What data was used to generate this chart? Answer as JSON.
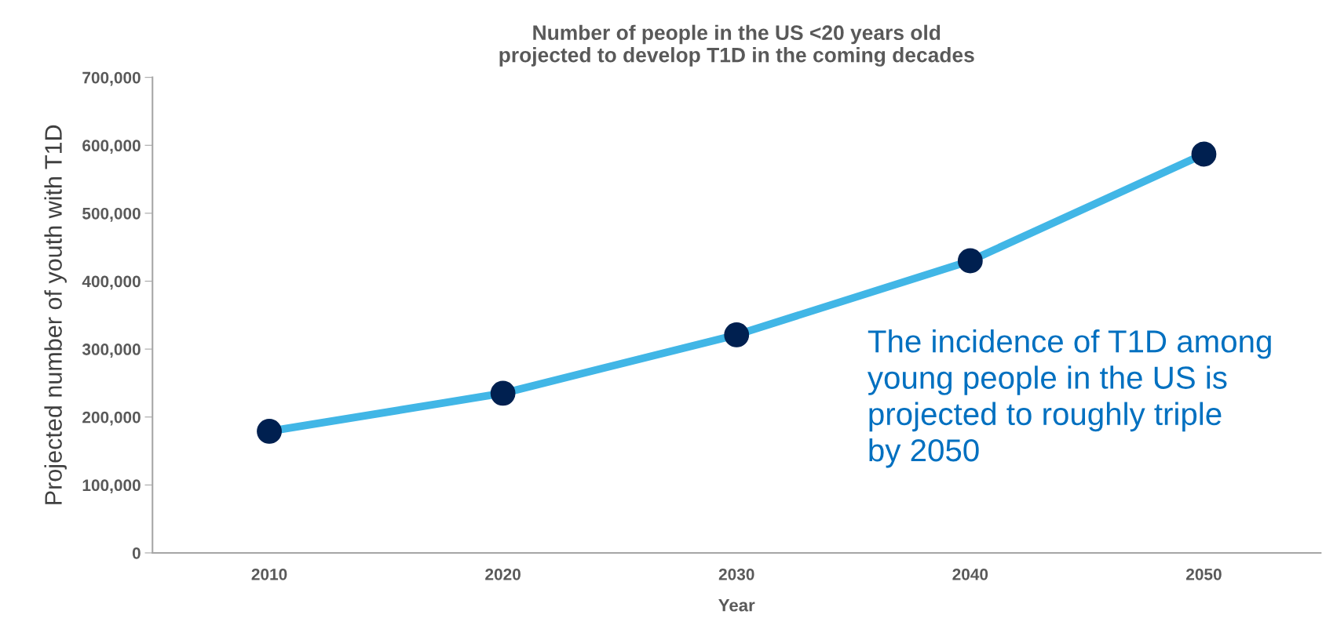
{
  "chart_data": {
    "type": "line",
    "title": "Number of people in the US <20 years old\nprojected to develop T1D in the coming decades",
    "xlabel": "Year",
    "ylabel": "Projected number of youth with T1D",
    "categories": [
      "2010",
      "2020",
      "2030",
      "2040",
      "2050"
    ],
    "series": [
      {
        "color": "#41b6e6",
        "colors": [
          "#002050",
          "#002050",
          "#002050",
          "#002050",
          "#002050"
        ],
        "values": [
          179000,
          235000,
          321000,
          430000,
          587000
        ]
      }
    ],
    "ylim": [
      0,
      700000
    ],
    "yticks": [
      {
        "value": 0,
        "label": "0"
      },
      {
        "value": 100000,
        "label": "100,000"
      },
      {
        "value": 200000,
        "label": "200,000"
      },
      {
        "value": 300000,
        "label": "300,000"
      },
      {
        "value": 400000,
        "label": "400,000"
      },
      {
        "value": 500000,
        "label": "500,000"
      },
      {
        "value": 600000,
        "label": "600,000"
      },
      {
        "value": 700000,
        "label": "700,000"
      }
    ],
    "marker": "circle",
    "line_style": "solid",
    "grid": false,
    "legend": false,
    "annotations": [
      "The incidence of T1D among\nyoung people in the US is\nprojected to roughly triple\nby 2050"
    ]
  }
}
